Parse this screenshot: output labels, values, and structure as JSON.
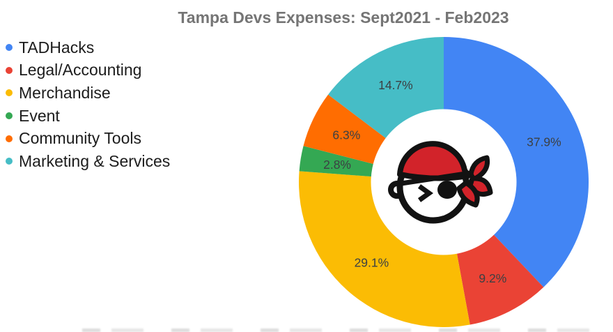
{
  "chart_data": {
    "type": "pie",
    "subtype": "donut",
    "title": "Tampa Devs Expenses: Sept2021 - Feb2023",
    "title_color": "#757575",
    "legend_position": "left",
    "hole_ratio": 0.5,
    "start_angle_deg": 0,
    "direction": "clockwise",
    "unit": "%",
    "label_color": "#3c4043",
    "center_icon": "tampa-devs-pirate-logo",
    "center_icon_colors": {
      "bandana": "#d2232a",
      "outline": "#121212",
      "face": "#ffffff"
    },
    "segments": [
      {
        "label": "TADHacks",
        "value": 37.9,
        "display": "37.9%",
        "color": "#4285F4"
      },
      {
        "label": "Legal/Accounting",
        "value": 9.2,
        "display": "9.2%",
        "color": "#EA4335"
      },
      {
        "label": "Merchandise",
        "value": 29.1,
        "display": "29.1%",
        "color": "#FBBC04"
      },
      {
        "label": "Event",
        "value": 2.8,
        "display": "2.8%",
        "color": "#34A853"
      },
      {
        "label": "Community Tools",
        "value": 6.3,
        "display": "6.3%",
        "color": "#FF6D01"
      },
      {
        "label": "Marketing & Services",
        "value": 14.7,
        "display": "14.7%",
        "color": "#46BDC6"
      }
    ]
  }
}
